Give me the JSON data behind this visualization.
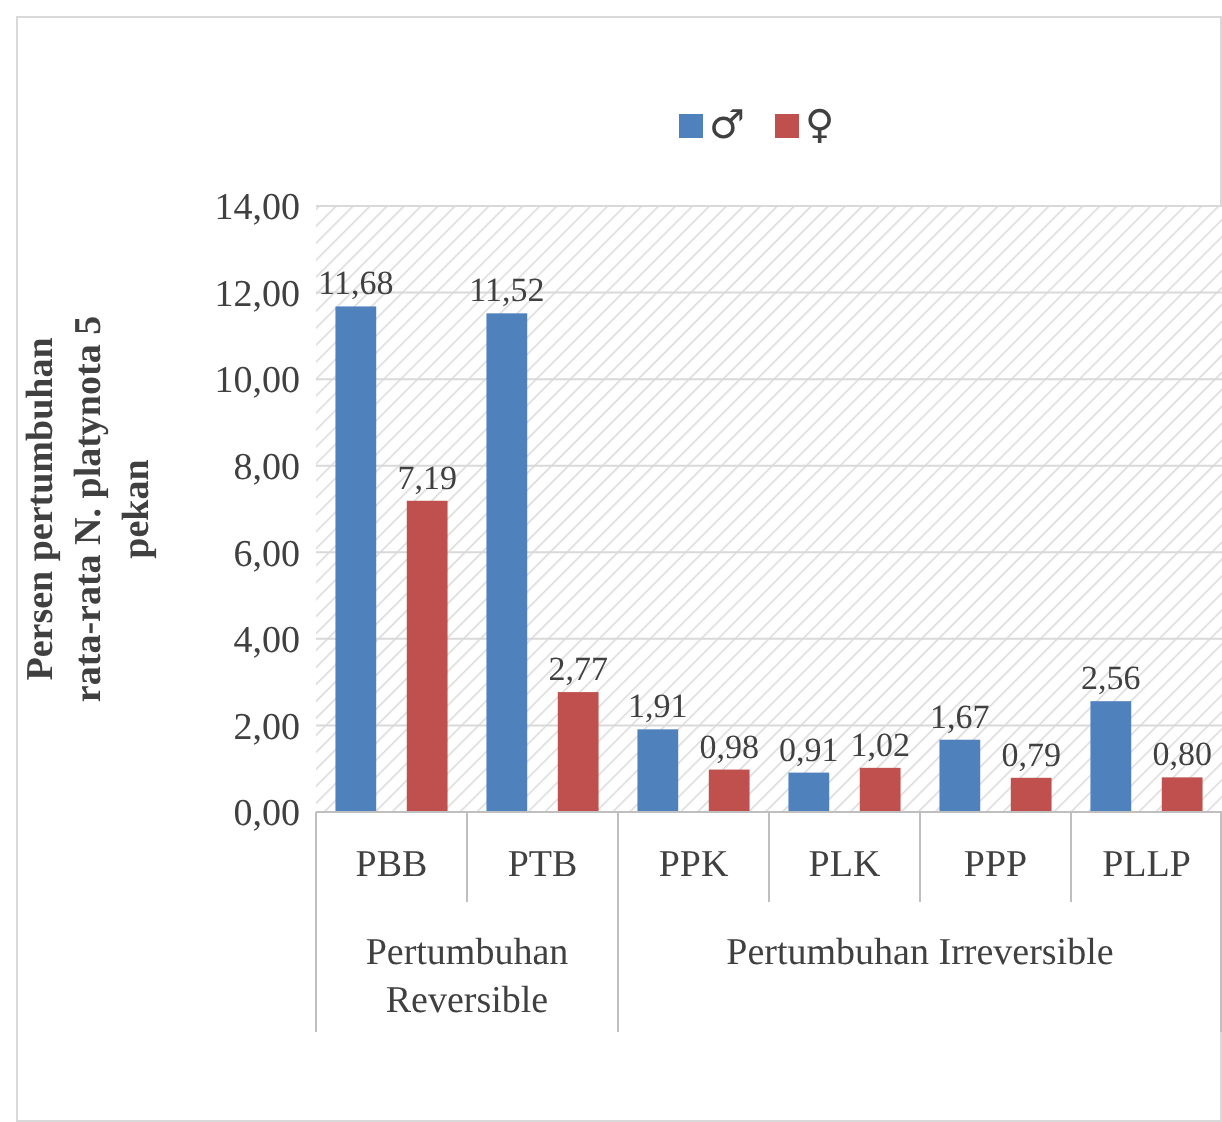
{
  "chart_data": {
    "type": "bar",
    "ylabel": "Persen pertumbuhan rata-rata N. platynota 5 pekan",
    "categories": [
      "PBB",
      "PTB",
      "PPK",
      "PLK",
      "PPP",
      "PLLP"
    ],
    "series": [
      {
        "name": "♂",
        "color": "#4f81bd",
        "values": [
          11.68,
          11.52,
          1.91,
          0.91,
          1.67,
          2.56
        ],
        "value_labels": [
          "11,68",
          "11,52",
          "1,91",
          "0,91",
          "1,67",
          "2,56"
        ]
      },
      {
        "name": "♀",
        "color": "#c0504d",
        "values": [
          7.19,
          2.77,
          0.98,
          1.02,
          0.79,
          0.8
        ],
        "value_labels": [
          "7,19",
          "2,77",
          "0,98",
          "1,02",
          "0,79",
          "0,80"
        ]
      }
    ],
    "ylim": [
      0,
      14
    ],
    "yticks": [
      {
        "value": 0,
        "label": "0,00"
      },
      {
        "value": 2,
        "label": "2,00"
      },
      {
        "value": 4,
        "label": "4,00"
      },
      {
        "value": 6,
        "label": "6,00"
      },
      {
        "value": 8,
        "label": "8,00"
      },
      {
        "value": 10,
        "label": "10,00"
      },
      {
        "value": 12,
        "label": "12,00"
      },
      {
        "value": 14,
        "label": "14,00"
      }
    ],
    "grid": "y",
    "legend": "top",
    "annotations": [
      "Pertumbuhan Reversible",
      "Pertumbuhan Irreversible"
    ]
  }
}
